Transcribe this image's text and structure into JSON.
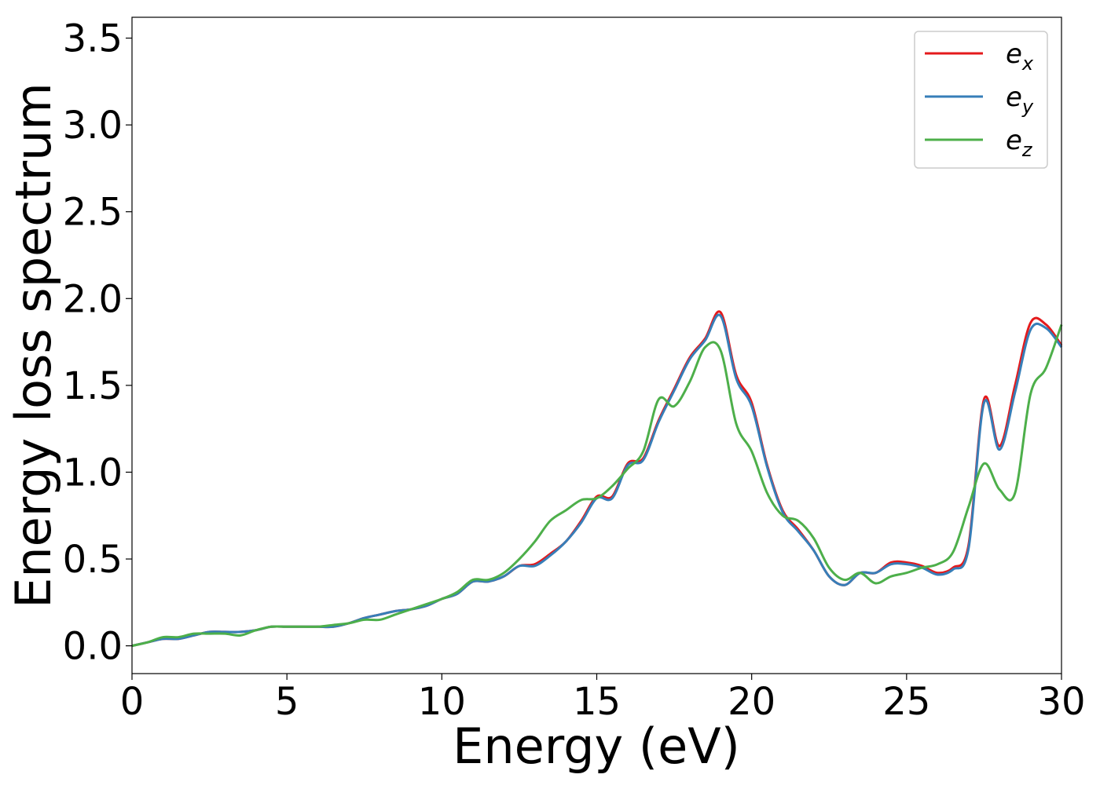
{
  "chart_data": {
    "type": "line",
    "xlabel": "Energy (eV)",
    "ylabel": "Energy loss spectrum",
    "xlim": [
      0,
      30
    ],
    "ylim": [
      -0.16,
      3.62
    ],
    "xticks": [
      0,
      5,
      10,
      15,
      20,
      25,
      30
    ],
    "xtick_labels": [
      "0",
      "5",
      "10",
      "15",
      "20",
      "25",
      "30"
    ],
    "yticks": [
      0.0,
      0.5,
      1.0,
      1.5,
      2.0,
      2.5,
      3.0,
      3.5
    ],
    "ytick_labels": [
      "0.0",
      "0.5",
      "1.0",
      "1.5",
      "2.0",
      "2.5",
      "3.0",
      "3.5"
    ],
    "grid": false,
    "legend_position": "top-right",
    "series": [
      {
        "name": "e_x",
        "label_main": "e",
        "label_sub": "x",
        "color": "#e41a1c",
        "x": [
          0,
          0.5,
          1,
          1.5,
          2,
          2.5,
          3,
          3.5,
          4,
          4.5,
          5,
          5.5,
          6,
          6.5,
          7,
          7.5,
          8,
          8.5,
          9,
          9.5,
          10,
          10.5,
          11,
          11.5,
          12,
          12.5,
          13,
          13.5,
          14,
          14.5,
          15,
          15.5,
          16,
          16.5,
          17,
          17.5,
          18,
          18.5,
          19,
          19.5,
          20,
          20.5,
          21,
          21.5,
          22,
          22.5,
          23,
          23.5,
          24,
          24.5,
          25,
          25.5,
          26,
          26.5,
          27,
          27.5,
          28,
          28.5,
          29,
          29.5,
          30
        ],
        "y": [
          0.0,
          0.02,
          0.04,
          0.04,
          0.06,
          0.08,
          0.08,
          0.08,
          0.09,
          0.11,
          0.11,
          0.11,
          0.11,
          0.11,
          0.13,
          0.16,
          0.18,
          0.2,
          0.21,
          0.23,
          0.27,
          0.3,
          0.37,
          0.37,
          0.4,
          0.46,
          0.47,
          0.53,
          0.6,
          0.72,
          0.86,
          0.86,
          1.05,
          1.08,
          1.3,
          1.48,
          1.66,
          1.77,
          1.92,
          1.56,
          1.4,
          1.04,
          0.78,
          0.67,
          0.55,
          0.4,
          0.35,
          0.42,
          0.42,
          0.48,
          0.48,
          0.46,
          0.42,
          0.45,
          0.58,
          1.42,
          1.15,
          1.5,
          1.86,
          1.85,
          1.73
        ]
      },
      {
        "name": "e_y",
        "label_main": "e",
        "label_sub": "y",
        "color": "#377eb8",
        "x": [
          0,
          0.5,
          1,
          1.5,
          2,
          2.5,
          3,
          3.5,
          4,
          4.5,
          5,
          5.5,
          6,
          6.5,
          7,
          7.5,
          8,
          8.5,
          9,
          9.5,
          10,
          10.5,
          11,
          11.5,
          12,
          12.5,
          13,
          13.5,
          14,
          14.5,
          15,
          15.5,
          16,
          16.5,
          17,
          17.5,
          18,
          18.5,
          19,
          19.5,
          20,
          20.5,
          21,
          21.5,
          22,
          22.5,
          23,
          23.5,
          24,
          24.5,
          25,
          25.5,
          26,
          26.5,
          27,
          27.5,
          28,
          28.5,
          29,
          29.5,
          30
        ],
        "y": [
          0.0,
          0.02,
          0.04,
          0.04,
          0.06,
          0.08,
          0.08,
          0.08,
          0.09,
          0.11,
          0.11,
          0.11,
          0.11,
          0.11,
          0.13,
          0.16,
          0.18,
          0.2,
          0.21,
          0.23,
          0.27,
          0.3,
          0.37,
          0.37,
          0.4,
          0.46,
          0.46,
          0.52,
          0.6,
          0.71,
          0.85,
          0.85,
          1.04,
          1.07,
          1.29,
          1.47,
          1.65,
          1.76,
          1.9,
          1.54,
          1.38,
          1.03,
          0.77,
          0.66,
          0.55,
          0.4,
          0.35,
          0.42,
          0.42,
          0.47,
          0.47,
          0.45,
          0.41,
          0.44,
          0.56,
          1.4,
          1.13,
          1.46,
          1.82,
          1.83,
          1.72
        ]
      },
      {
        "name": "e_z",
        "label_main": "e",
        "label_sub": "z",
        "color": "#4daf4a",
        "x": [
          0,
          0.5,
          1,
          1.5,
          2,
          2.5,
          3,
          3.5,
          4,
          4.5,
          5,
          5.5,
          6,
          6.5,
          7,
          7.5,
          8,
          8.5,
          9,
          9.5,
          10,
          10.5,
          11,
          11.5,
          12,
          12.5,
          13,
          13.5,
          14,
          14.5,
          15,
          15.5,
          16,
          16.5,
          17,
          17.5,
          18,
          18.5,
          19,
          19.5,
          20,
          20.5,
          21,
          21.5,
          22,
          22.5,
          23,
          23.5,
          24,
          24.5,
          25,
          25.5,
          26,
          26.5,
          27,
          27.5,
          28,
          28.5,
          29,
          29.5,
          30
        ],
        "y": [
          0.0,
          0.02,
          0.05,
          0.05,
          0.07,
          0.07,
          0.07,
          0.06,
          0.09,
          0.11,
          0.11,
          0.11,
          0.11,
          0.12,
          0.13,
          0.15,
          0.15,
          0.18,
          0.21,
          0.24,
          0.27,
          0.31,
          0.38,
          0.38,
          0.42,
          0.5,
          0.6,
          0.72,
          0.78,
          0.84,
          0.85,
          0.92,
          1.02,
          1.12,
          1.42,
          1.38,
          1.52,
          1.72,
          1.7,
          1.28,
          1.12,
          0.88,
          0.75,
          0.72,
          0.62,
          0.45,
          0.38,
          0.42,
          0.36,
          0.4,
          0.42,
          0.45,
          0.47,
          0.54,
          0.8,
          1.05,
          0.9,
          0.88,
          1.45,
          1.6,
          1.85
        ]
      }
    ]
  }
}
